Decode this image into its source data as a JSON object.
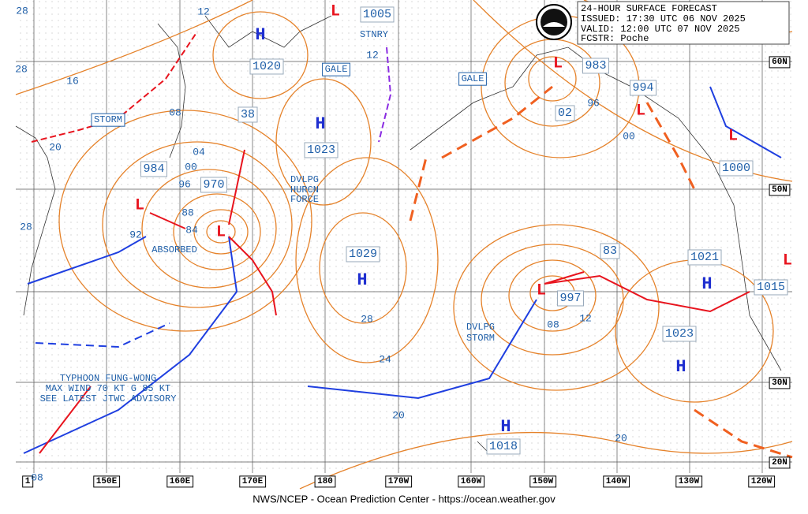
{
  "header": {
    "title": "24-HOUR SURFACE FORECAST",
    "issued": "ISSUED: 17:30 UTC 06 NOV 2025",
    "valid": "VALID:  12:00 UTC 07 NOV 2025",
    "forecaster": "FCSTR:  Poche"
  },
  "longitude_labels": [
    "1",
    "150E",
    "160E",
    "170E",
    "180",
    "170W",
    "160W",
    "150W",
    "140W",
    "130W",
    "120W"
  ],
  "latitude_labels": [
    "60N",
    "50N",
    "30N",
    "20N"
  ],
  "isobar_labels": [
    "28",
    "28",
    "16",
    "20",
    "28",
    "12",
    "08",
    "04",
    "00",
    "96",
    "88",
    "84",
    "92",
    "12",
    "96",
    "00",
    "24",
    "28",
    "20",
    "08",
    "12",
    "20",
    "08"
  ],
  "pressure_labels": [
    "1020",
    "1005",
    "38",
    "1023",
    "984",
    "970",
    "983",
    "994",
    "02",
    "1000",
    "1029",
    "83",
    "997",
    "1021",
    "1015",
    "1023",
    "1018"
  ],
  "highs": [
    "H",
    "H",
    "H",
    "H",
    "H",
    "H"
  ],
  "lows": [
    "L",
    "L",
    "L",
    "L",
    "L",
    "L",
    "L",
    "L"
  ],
  "warnings": [
    "STORM",
    "GALE",
    "STNRY",
    "GALE",
    "ABSORBED"
  ],
  "hurricane_note": [
    "DVLPG",
    "HURCN",
    "FORCE"
  ],
  "storm_note": [
    "DVLPG",
    "STORM"
  ],
  "typhoon_note": [
    "TYPHOON FUNG-WONG",
    "MAX WIND 70 KT G 85 KT",
    "SEE LATEST JTWC ADVISORY"
  ],
  "footer": "NWS/NCEP - Ocean Prediction Center - https://ocean.weather.gov"
}
